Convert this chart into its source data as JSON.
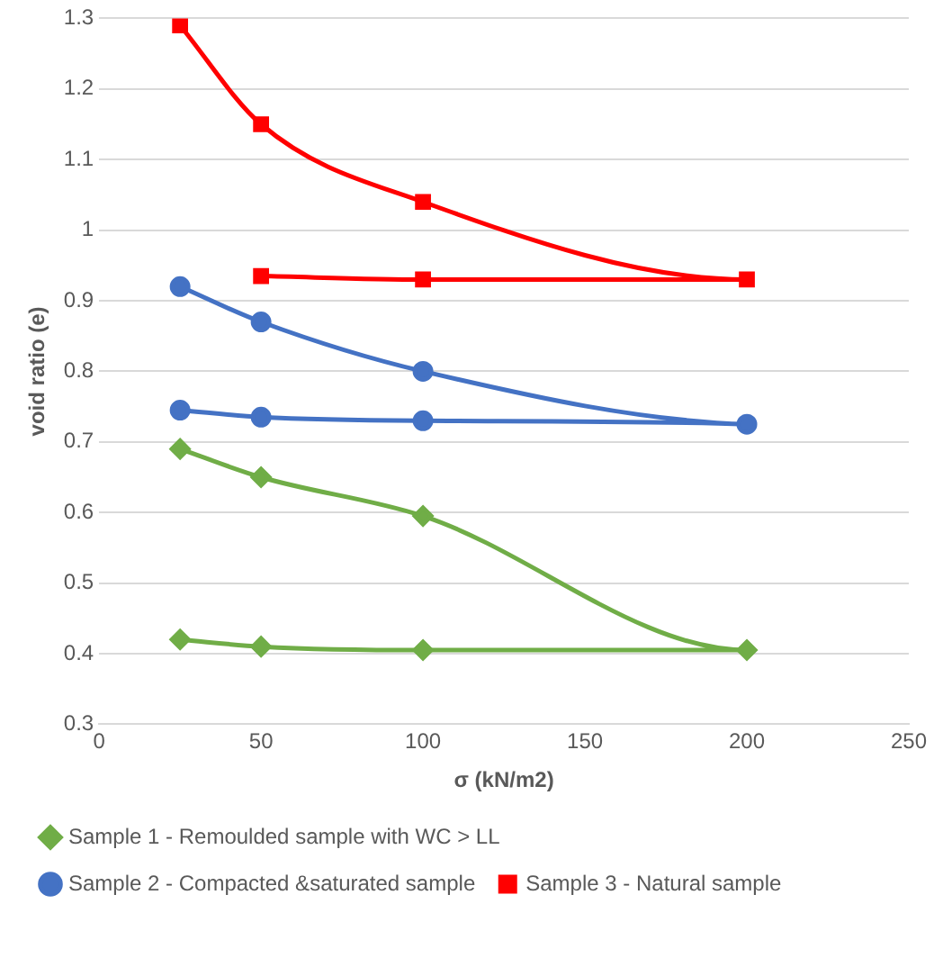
{
  "chart_data": {
    "type": "line",
    "xlabel": "σ (kN/m2)",
    "ylabel": "void ratio (e)",
    "xlim": [
      0,
      250
    ],
    "xticks": [
      0,
      50,
      100,
      150,
      200,
      250
    ],
    "ylim": [
      0.3,
      1.3
    ],
    "yticks": [
      0.3,
      0.4,
      0.5,
      0.6,
      0.7,
      0.8,
      0.9,
      1,
      1.1,
      1.2,
      1.3
    ],
    "grid": "y",
    "legend": "bottom",
    "series": [
      {
        "name": "Sample 1 - Remoulded sample with WC > LL",
        "color": "#70ad47",
        "marker": "diamond",
        "x": [
          25,
          50,
          100,
          200,
          100,
          50,
          25
        ],
        "values": [
          0.69,
          0.65,
          0.595,
          0.405,
          0.405,
          0.41,
          0.42
        ]
      },
      {
        "name": "Sample 2 - Compacted &saturated sample",
        "color": "#4472c4",
        "marker": "circle",
        "x": [
          25,
          50,
          100,
          200,
          100,
          50,
          25
        ],
        "values": [
          0.92,
          0.87,
          0.8,
          0.725,
          0.73,
          0.735,
          0.745
        ]
      },
      {
        "name": "Sample 3 - Natural sample",
        "color": "#ff0000",
        "marker": "square",
        "x": [
          25,
          50,
          100,
          200,
          100,
          50
        ],
        "values": [
          1.29,
          1.15,
          1.04,
          0.93,
          0.93,
          0.935
        ]
      }
    ]
  }
}
